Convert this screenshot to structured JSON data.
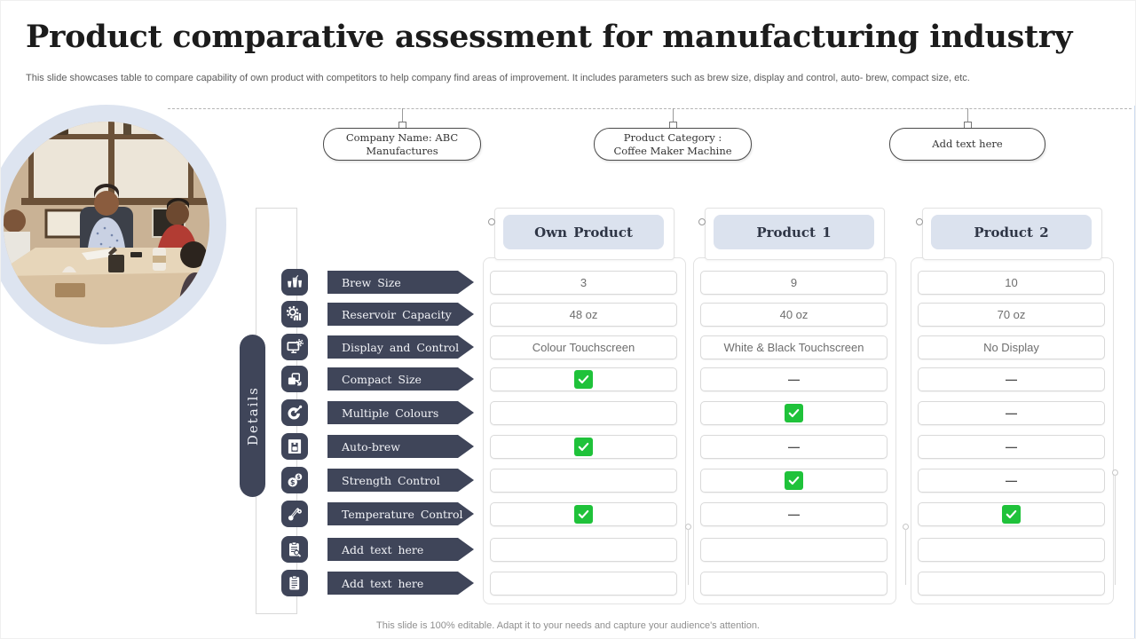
{
  "slide": {
    "title": "Product comparative assessment for manufacturing industry",
    "subtitle": "This slide showcases table to compare capability of own product with competitors to help company find areas of improvement. It includes parameters such as brew size, display and control, auto- brew, compact size, etc.",
    "footer": "This slide is 100% editable. Adapt it to your needs and capture your audience's attention."
  },
  "top_labels": [
    {
      "text": "Company Name: ABC Manufactures"
    },
    {
      "text": "Product Category : Coffee Maker Machine"
    },
    {
      "text": "Add text here"
    }
  ],
  "details_tab_label": "Details",
  "table": {
    "columns": [
      "Own Product",
      "Product 1",
      "Product 2"
    ],
    "rows": [
      {
        "label": "Brew Size",
        "icon": "brew-size-icon",
        "cells": [
          {
            "type": "text",
            "value": "3"
          },
          {
            "type": "text",
            "value": "9"
          },
          {
            "type": "text",
            "value": "10"
          }
        ]
      },
      {
        "label": "Reservoir Capacity",
        "icon": "reservoir-capacity-icon",
        "cells": [
          {
            "type": "text",
            "value": "48 oz"
          },
          {
            "type": "text",
            "value": "40 oz"
          },
          {
            "type": "text",
            "value": "70 oz"
          }
        ]
      },
      {
        "label": "Display and Control",
        "icon": "display-control-icon",
        "cells": [
          {
            "type": "text",
            "value": "Colour Touchscreen"
          },
          {
            "type": "text",
            "value": "White & Black Touchscreen"
          },
          {
            "type": "text",
            "value": "No Display"
          }
        ]
      },
      {
        "label": "Compact Size",
        "icon": "compact-size-icon",
        "cells": [
          {
            "type": "check"
          },
          {
            "type": "dash"
          },
          {
            "type": "dash"
          }
        ]
      },
      {
        "label": "Multiple Colours",
        "icon": "multiple-colours-icon",
        "cells": [
          {
            "type": "empty"
          },
          {
            "type": "check"
          },
          {
            "type": "dash"
          }
        ]
      },
      {
        "label": "Auto-brew",
        "icon": "auto-brew-icon",
        "cells": [
          {
            "type": "check"
          },
          {
            "type": "dash"
          },
          {
            "type": "dash"
          }
        ]
      },
      {
        "label": "Strength Control",
        "icon": "strength-control-icon",
        "cells": [
          {
            "type": "empty"
          },
          {
            "type": "check"
          },
          {
            "type": "dash"
          }
        ]
      },
      {
        "label": "Temperature Control",
        "icon": "temperature-control-icon",
        "cells": [
          {
            "type": "check"
          },
          {
            "type": "dash"
          },
          {
            "type": "check"
          }
        ]
      },
      {
        "label": "Add text here",
        "icon": "clipboard-search-icon",
        "cells": [
          {
            "type": "empty"
          },
          {
            "type": "empty"
          },
          {
            "type": "empty"
          }
        ]
      },
      {
        "label": "Add text here",
        "icon": "clipboard-notes-icon",
        "cells": [
          {
            "type": "empty"
          },
          {
            "type": "empty"
          },
          {
            "type": "empty"
          }
        ]
      }
    ],
    "dash_glyph": "—",
    "check_glyph": "✓"
  },
  "colors": {
    "slate": "#3f4559",
    "header_fill": "#dbe2ee",
    "check_green": "#1fc23a",
    "ring": "#dde4f0",
    "cell_border": "#d9d9d9",
    "accent_line": "#cddcf0"
  }
}
